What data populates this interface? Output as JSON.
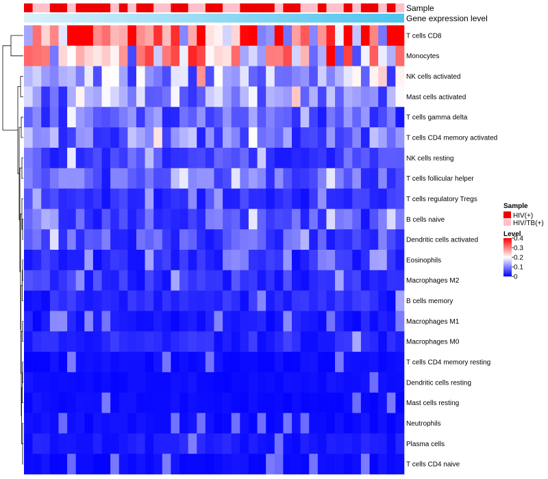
{
  "chart_data": {
    "type": "heatmap",
    "title": "",
    "rows": [
      "T cells CD8",
      "Monocytes",
      "NK cells activated",
      "Mast cells activated",
      "T cells gamma delta",
      "T cells CD4 memory activated",
      "NK cells resting",
      "T cells follicular helper",
      "T cells regulatory  Tregs",
      "B cells naive",
      "Dendritic cells activated",
      "Eosinophils",
      "Macrophages M2",
      "B cells memory",
      "Macrophages M1",
      "Macrophages M0",
      "T cells CD4 memory resting",
      "Dendritic cells resting",
      "Mast cells resting",
      "Neutrophils",
      "Plasma cells",
      "T cells CD4 naive"
    ],
    "row_means": [
      0.32,
      0.22,
      0.12,
      0.12,
      0.07,
      0.09,
      0.06,
      0.07,
      0.04,
      0.06,
      0.06,
      0.03,
      0.04,
      0.03,
      0.02,
      0.03,
      0.01,
      0.01,
      0.01,
      0.01,
      0.02,
      0.01
    ],
    "n_samples": 44,
    "sample_groups": [
      "HIV(+)",
      "HIV/TB(+)",
      "HIV/TB(+)",
      "HIV(+)",
      "HIV(+)",
      "HIV/TB(+)",
      "HIV(+)",
      "HIV(+)",
      "HIV(+)",
      "HIV(+)",
      "HIV/TB(+)",
      "HIV(+)",
      "HIV/TB(+)",
      "HIV(+)",
      "HIV(+)",
      "HIV/TB(+)",
      "HIV/TB(+)",
      "HIV(+)",
      "HIV(+)",
      "HIV/TB(+)",
      "HIV/TB(+)",
      "HIV(+)",
      "HIV(+)",
      "HIV/TB(+)",
      "HIV/TB(+)",
      "HIV(+)",
      "HIV(+)",
      "HIV(+)",
      "HIV(+)",
      "HIV/TB(+)",
      "HIV(+)",
      "HIV(+)",
      "HIV/TB(+)",
      "HIV/TB(+)",
      "HIV(+)",
      "HIV/TB(+)",
      "HIV/TB(+)",
      "HIV(+)",
      "HIV/TB(+)",
      "HIV(+)",
      "HIV(+)",
      "HIV/TB(+)",
      "HIV(+)",
      "HIV/TB(+)"
    ],
    "annotations": {
      "sample_label": "Sample",
      "expression_label": "Gene expression level"
    },
    "legend": {
      "sample_title": "Sample",
      "sample_entries": [
        {
          "label": "HIV(+)",
          "color": "#ee0000"
        },
        {
          "label": "HIV/TB(+)",
          "color": "#ffc0cb"
        }
      ],
      "level_title": "Level",
      "level_ticks": [
        {
          "value": 0.4,
          "label": "0.4"
        },
        {
          "value": 0.3,
          "label": "0.3"
        },
        {
          "value": 0.2,
          "label": "0.2"
        },
        {
          "value": 0.1,
          "label": "0.1"
        },
        {
          "value": 0,
          "label": "0"
        }
      ],
      "range": [
        0,
        0.4
      ],
      "placement": "right"
    },
    "colors": {
      "low": "#0000ff",
      "mid": "#ffffff",
      "high": "#ff0000",
      "hiv": "#ee0000",
      "hivtb": "#ffc0cb",
      "expr_start": "#d9f1fb",
      "expr_end": "#4cc3ee"
    }
  }
}
